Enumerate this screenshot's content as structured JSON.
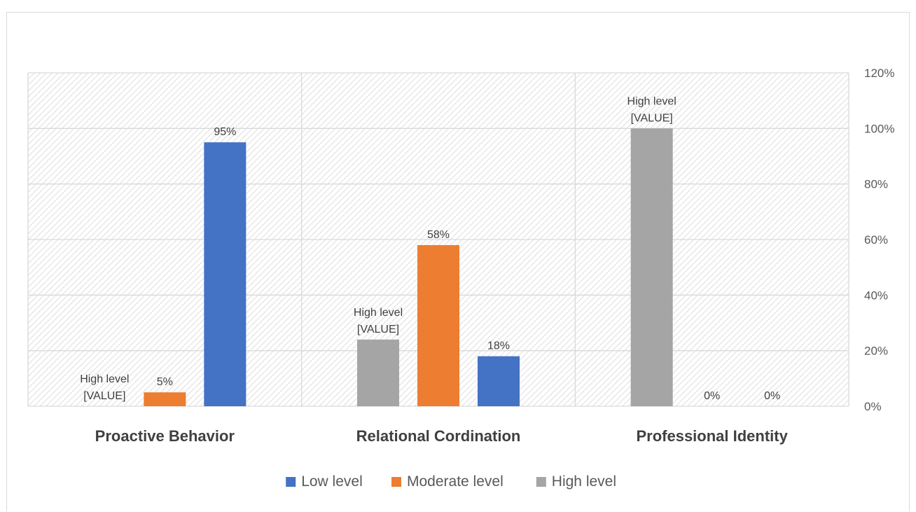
{
  "chart_data": {
    "type": "bar",
    "categories": [
      "Proactive Behavior",
      "Relational Cordination",
      "Professional Identity"
    ],
    "series": [
      {
        "name": "Low level",
        "color": "#4472c4",
        "values": [
          95,
          18,
          0
        ],
        "labels": [
          "95%",
          "18%",
          "0%"
        ]
      },
      {
        "name": "Moderate level",
        "color": "#ed7d31",
        "values": [
          5,
          58,
          0
        ],
        "labels": [
          "5%",
          "58%",
          "0%"
        ]
      },
      {
        "name": "High level",
        "color": "#a5a5a5",
        "values": [
          0,
          24,
          100
        ],
        "labels": [
          "High level\n[VALUE]",
          "High level\n[VALUE]",
          "High level\n[VALUE]"
        ]
      }
    ],
    "bar_order": [
      "High level",
      "Moderate level",
      "Low level"
    ],
    "ylim": [
      0,
      120
    ],
    "y_ticks": [
      0,
      20,
      40,
      60,
      80,
      100,
      120
    ],
    "y_tick_labels": [
      "0%",
      "20%",
      "40%",
      "60%",
      "80%",
      "100%",
      "120%"
    ],
    "y_axis_side": "right",
    "grid": true,
    "legend_position": "bottom",
    "title": "",
    "xlabel": "",
    "ylabel": ""
  }
}
